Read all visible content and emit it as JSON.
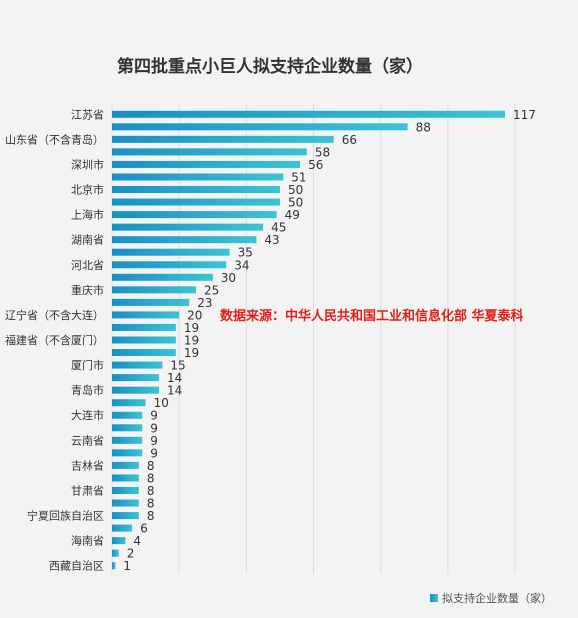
{
  "chart_data": {
    "type": "bar",
    "orientation": "horizontal",
    "title": "第四批重点小巨人拟支持企业数量（家）",
    "annotation": "数据来源：中华人民共和国工业和信息化部 华夏泰科",
    "legend": {
      "label": "拟支持企业数量（家）",
      "position": "bottom-right"
    },
    "categories": [
      "江苏省",
      "",
      "山东省（不含青岛）",
      "",
      "深圳市",
      "",
      "北京市",
      "",
      "上海市",
      "",
      "湖南省",
      "",
      "河北省",
      "",
      "重庆市",
      "",
      "辽宁省（不含大连）",
      "",
      "福建省（不含厦门）",
      "",
      "厦门市",
      "",
      "青岛市",
      "",
      "大连市",
      "",
      "云南省",
      "",
      "吉林省",
      "",
      "甘肃省",
      "",
      "宁夏回族自治区",
      "",
      "海南省",
      "",
      "西藏自治区"
    ],
    "values": [
      117,
      88,
      66,
      58,
      56,
      51,
      50,
      50,
      49,
      45,
      43,
      35,
      34,
      30,
      25,
      23,
      20,
      19,
      19,
      19,
      15,
      14,
      14,
      10,
      9,
      9,
      9,
      9,
      8,
      8,
      8,
      8,
      8,
      6,
      4,
      2,
      1
    ],
    "xlim": [
      0,
      130
    ],
    "grid": true,
    "colors": {
      "bar_start": "#1a8fc4",
      "bar_end": "#3cc3d2",
      "annotation": "#e0201a",
      "title": "#333333",
      "background": "#f3f3f3"
    }
  }
}
